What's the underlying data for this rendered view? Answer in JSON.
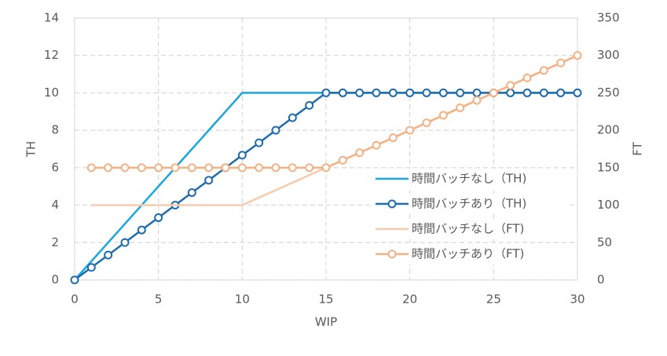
{
  "chart_data": {
    "type": "line",
    "x": [
      0,
      1,
      2,
      3,
      4,
      5,
      6,
      7,
      8,
      9,
      10,
      11,
      12,
      13,
      14,
      15,
      16,
      17,
      18,
      19,
      20,
      21,
      22,
      23,
      24,
      25,
      26,
      27,
      28,
      29,
      30
    ],
    "xlabel": "WIP",
    "ylabel": "TH",
    "y2label": "FT",
    "xlim": [
      0,
      30
    ],
    "xticks": [
      0,
      5,
      10,
      15,
      20,
      25,
      30
    ],
    "ylim": [
      0,
      14
    ],
    "yticks": [
      0,
      2,
      4,
      6,
      8,
      10,
      12,
      14
    ],
    "y2lim": [
      0,
      350
    ],
    "y2ticks": [
      0,
      50,
      100,
      150,
      200,
      250,
      300,
      350
    ],
    "grid": true,
    "legend": "right",
    "series": [
      {
        "name": "時間バッチなし（TH)",
        "color": "#1aa6de",
        "markers": false,
        "values": [
          0,
          1,
          2,
          3,
          4,
          5,
          6,
          7,
          8,
          9,
          10,
          10,
          10,
          10,
          10,
          10,
          10,
          10,
          10,
          10,
          10,
          10,
          10,
          10,
          10,
          10,
          10,
          10,
          10,
          10,
          10
        ]
      },
      {
        "name": "時間バッチあり（TH)",
        "color": "#1f6cae",
        "markers": true,
        "values": [
          0,
          0.67,
          1.33,
          2,
          2.67,
          3.33,
          4,
          4.67,
          5.33,
          6,
          6.67,
          7.33,
          8,
          8.67,
          9.33,
          10,
          10,
          10,
          10,
          10,
          10,
          10,
          10,
          10,
          10,
          10,
          10,
          10,
          10,
          10,
          10
        ]
      },
      {
        "name": "時間バッチなし（FT)",
        "color": "#f8cbad",
        "markers": false,
        "axis": "y2",
        "values": [
          null,
          100,
          100,
          100,
          100,
          100,
          100,
          100,
          100,
          100,
          100,
          110,
          120,
          130,
          140,
          150,
          160,
          170,
          180,
          190,
          200,
          210,
          220,
          230,
          240,
          250,
          260,
          270,
          280,
          290,
          300
        ]
      },
      {
        "name": "時間バッチあり（FT)",
        "color": "#f4b183",
        "markers": true,
        "axis": "y2",
        "values": [
          null,
          150,
          150,
          150,
          150,
          150,
          150,
          150,
          150,
          150,
          150,
          150,
          150,
          150,
          150,
          150,
          160,
          170,
          180,
          190,
          200,
          210,
          220,
          230,
          240,
          250,
          260,
          270,
          280,
          290,
          300
        ]
      }
    ]
  }
}
